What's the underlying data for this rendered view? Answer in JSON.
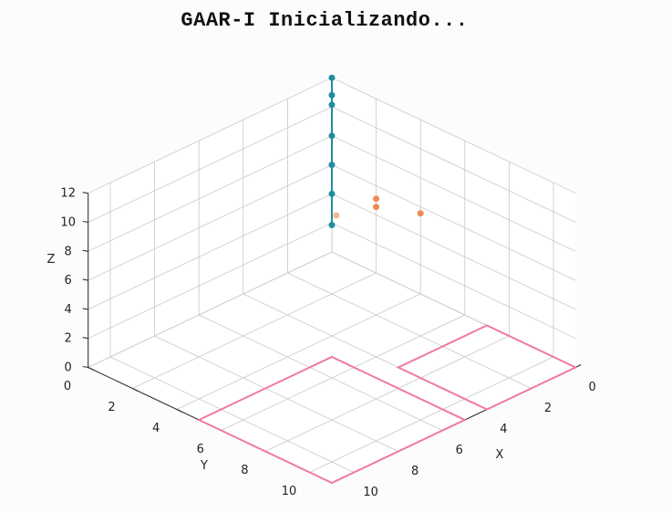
{
  "chart_data": {
    "type": "scatter",
    "title": "GAAR-I Inicializando...",
    "xlabel": "X",
    "ylabel": "Y",
    "zlabel": "Z",
    "xlim": [
      0,
      11
    ],
    "ylim": [
      0,
      11
    ],
    "zlim": [
      0,
      12
    ],
    "x_ticks": [
      0,
      2,
      4,
      6,
      8,
      10
    ],
    "y_ticks": [
      0,
      2,
      4,
      6,
      8,
      10
    ],
    "z_ticks": [
      0,
      2,
      4,
      6,
      8,
      10,
      12
    ],
    "grid": true,
    "colors": {
      "trajectory": "#1f8fa0",
      "regions": "#f07a9a",
      "points": "#f08a50",
      "points_light": "#f6b890"
    },
    "series": [
      {
        "kind": "line",
        "points": [
          [
            0,
            0,
            12
          ],
          [
            0,
            0,
            10.8
          ],
          [
            0.25,
            0.25,
            10.5
          ],
          [
            0,
            0,
            8
          ],
          [
            0,
            0,
            6
          ],
          [
            0,
            0,
            4
          ],
          [
            0.1,
            0.1,
            2
          ]
        ]
      },
      {
        "kind": "points",
        "points": [
          [
            3,
            1,
            6
          ],
          [
            5,
            1,
            7
          ],
          [
            4,
            2,
            8
          ],
          [
            3.2,
            3,
            7
          ]
        ]
      },
      {
        "kind": "polygon",
        "points": [
          [
            5,
            11,
            0
          ],
          [
            11,
            11,
            0
          ],
          [
            11,
            5,
            0
          ],
          [
            5,
            5,
            0
          ]
        ]
      },
      {
        "kind": "polygon",
        "points": [
          [
            7,
            0,
            0
          ],
          [
            11,
            0,
            0
          ],
          [
            11,
            4,
            0
          ],
          [
            7,
            4,
            0
          ]
        ]
      }
    ]
  }
}
